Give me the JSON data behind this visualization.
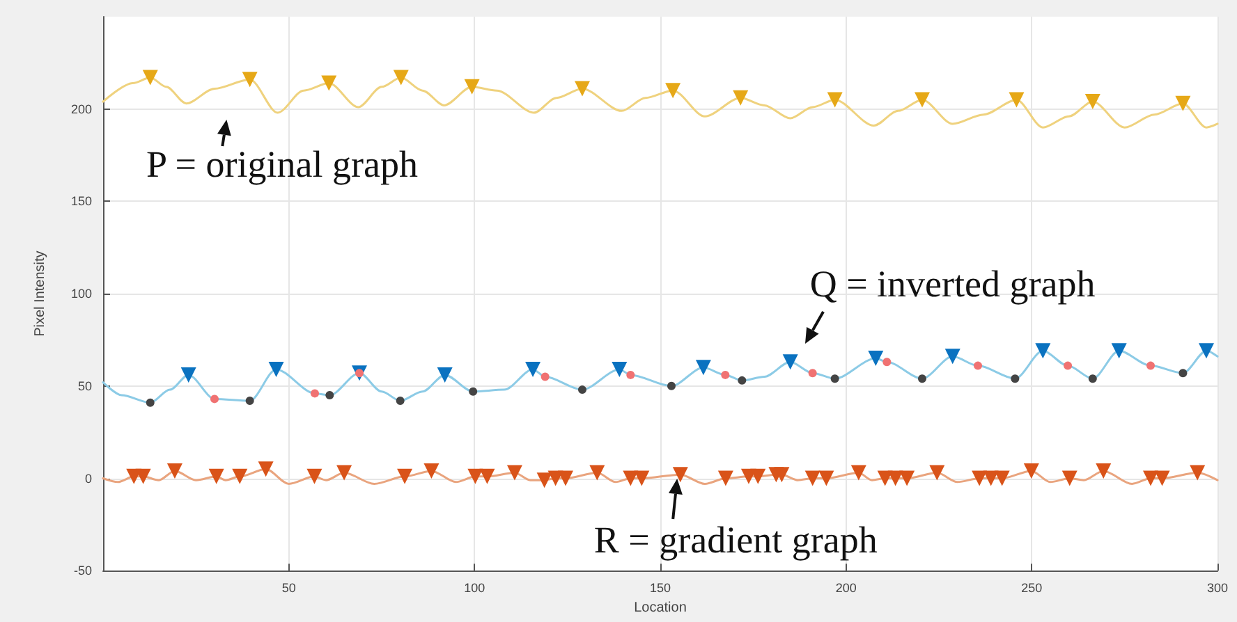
{
  "chart_data": {
    "type": "line",
    "xlabel": "Location",
    "ylabel": "Pixel Intensity",
    "xlim": [
      0,
      300
    ],
    "xticks": [
      50,
      100,
      150,
      200,
      250,
      300
    ],
    "ylim": [
      -50,
      250
    ],
    "yticks": [
      -50,
      0,
      50,
      100,
      150,
      200
    ],
    "grid": true,
    "line_style": "solid",
    "series": [
      {
        "marker": "none",
        "color": "#efd27e",
        "x": [
          0,
          8,
          12.7,
          17,
          22.4,
          30,
          39.5,
          47,
          54,
          60.8,
          68.7,
          75,
          80.2,
          86,
          91.8,
          99.3,
          106,
          116,
          122,
          129,
          139.6,
          146,
          153.4,
          162,
          171.6,
          178,
          185,
          191,
          197,
          207.5,
          214,
          220.5,
          228.7,
          237,
          245.9,
          253,
          260,
          266.4,
          275,
          283,
          290.7,
          297,
          300
        ],
        "values": [
          204,
          214,
          217,
          212,
          203,
          211,
          216,
          198,
          210,
          214,
          201,
          212,
          217,
          210,
          202,
          212,
          210,
          198,
          206,
          211,
          199,
          206,
          210,
          196,
          206,
          202,
          195,
          201,
          205,
          191,
          199,
          205,
          192,
          197,
          205,
          190,
          196,
          204,
          190,
          197,
          203,
          190,
          192
        ]
      },
      {
        "type": "scatter",
        "marker": "triangle",
        "color": "#e6a817",
        "x": [
          12.7,
          39.5,
          60.8,
          80.2,
          99.3,
          129,
          153.4,
          171.6,
          197,
          220.5,
          245.9,
          266.4,
          290.7
        ],
        "values": [
          217,
          216,
          214,
          217,
          212,
          211,
          210,
          206,
          205,
          205,
          205,
          204,
          203
        ]
      },
      {
        "marker": "none",
        "color": "#8ccbe6",
        "x": [
          0,
          5,
          12.7,
          18,
          23,
          30,
          39.5,
          46.6,
          57,
          61,
          69,
          75,
          80,
          86,
          92,
          99.6,
          108,
          115.7,
          119,
          129,
          139,
          142,
          153,
          161.6,
          167.5,
          172,
          178,
          185,
          191,
          197,
          208,
          211,
          220.5,
          228.7,
          235.5,
          245.5,
          253,
          259.7,
          266.4,
          273.5,
          282,
          290.7,
          297,
          300
        ],
        "values": [
          52,
          45,
          41,
          48,
          56,
          43,
          42,
          59,
          46,
          45,
          57,
          47,
          42,
          47,
          56,
          47,
          48,
          59,
          55,
          48,
          59,
          56,
          50,
          60,
          56,
          53,
          55,
          63,
          57,
          54,
          65,
          63,
          54,
          66,
          61,
          54,
          69,
          61,
          54,
          69,
          61,
          57,
          69,
          66
        ]
      },
      {
        "type": "scatter",
        "marker": "triangle",
        "color": "#0a72c0",
        "x": [
          23,
          46.6,
          69,
          92,
          115.7,
          139,
          161.6,
          185,
          208,
          228.7,
          253,
          273.5,
          297
        ],
        "values": [
          56,
          59,
          57,
          56,
          59,
          59,
          60,
          63,
          65,
          66,
          69,
          69,
          69
        ]
      },
      {
        "type": "scatter",
        "marker": "circle",
        "color": "#f07272",
        "x": [
          30,
          57,
          69,
          119,
          142,
          167.5,
          191,
          211,
          235.5,
          259.7,
          282
        ],
        "values": [
          43,
          46,
          57,
          55,
          56,
          56,
          57,
          63,
          61,
          61,
          61
        ]
      },
      {
        "type": "scatter",
        "marker": "circle",
        "color": "#444444",
        "x": [
          12.7,
          39.5,
          61,
          80,
          99.6,
          129,
          153,
          172,
          197,
          220.5,
          245.5,
          266.4,
          290.7
        ],
        "values": [
          41,
          42,
          45,
          42,
          47,
          48,
          50,
          53,
          54,
          54,
          54,
          54,
          57
        ]
      },
      {
        "marker": "none",
        "color": "#e9a47e",
        "x": [
          0,
          4,
          8.3,
          10.8,
          15,
          19.3,
          25,
          30.5,
          33,
          36.8,
          43.8,
          50,
          56.9,
          60,
          64.9,
          73,
          81.2,
          88.4,
          95,
          100.2,
          103.4,
          110.8,
          115,
          118.8,
          121.8,
          124.5,
          133,
          138,
          142,
          145,
          155.4,
          162,
          167.6,
          173.8,
          176.3,
          181.2,
          182.7,
          187,
          191,
          194.7,
          203.4,
          207,
          210.5,
          213.3,
          216.4,
          224.5,
          230,
          235.9,
          239,
          242,
          249.9,
          255,
          260.2,
          264,
          269.3,
          277,
          282,
          285.1,
          294.6,
          300
        ],
        "values": [
          0,
          -2,
          1,
          1,
          -1,
          4,
          -1,
          1,
          -1,
          1,
          5,
          -3,
          1,
          -1,
          3,
          -3,
          1,
          4,
          -2,
          1,
          1,
          3,
          -1,
          -1,
          0,
          0,
          3,
          -2,
          0,
          0,
          2,
          -3,
          0,
          1,
          1,
          2,
          2,
          -1,
          0,
          0,
          3,
          -1,
          0,
          0,
          0,
          3,
          -2,
          0,
          0,
          0,
          4,
          -2,
          0,
          -1,
          4,
          -3,
          0,
          0,
          3,
          -1
        ]
      },
      {
        "type": "scatter",
        "marker": "triangle",
        "color": "#d95319",
        "x": [
          8.3,
          10.8,
          19.3,
          30.5,
          36.8,
          43.8,
          56.9,
          64.9,
          81.2,
          88.4,
          100.2,
          103.4,
          110.8,
          118.8,
          121.8,
          124.5,
          133,
          142,
          145,
          155.4,
          167.6,
          173.8,
          176.3,
          181.2,
          182.7,
          191,
          194.7,
          203.4,
          210.5,
          213.3,
          216.4,
          224.5,
          235.9,
          239,
          242,
          249.9,
          260.2,
          269.3,
          282,
          285.1,
          294.6
        ],
        "values": [
          1,
          1,
          4,
          1,
          1,
          5,
          1,
          3,
          1,
          4,
          1,
          1,
          3,
          -1,
          0,
          0,
          3,
          0,
          0,
          2,
          0,
          1,
          1,
          2,
          2,
          0,
          0,
          3,
          0,
          0,
          0,
          3,
          0,
          0,
          0,
          4,
          0,
          4,
          0,
          0,
          3
        ]
      }
    ],
    "annotations": [
      {
        "text": "P = original graph",
        "x": 30,
        "y": 211
      },
      {
        "text": "Q = inverted graph",
        "x": 185,
        "y": 63
      },
      {
        "text": "R = gradient graph",
        "x": 155.4,
        "y": 2
      }
    ]
  }
}
